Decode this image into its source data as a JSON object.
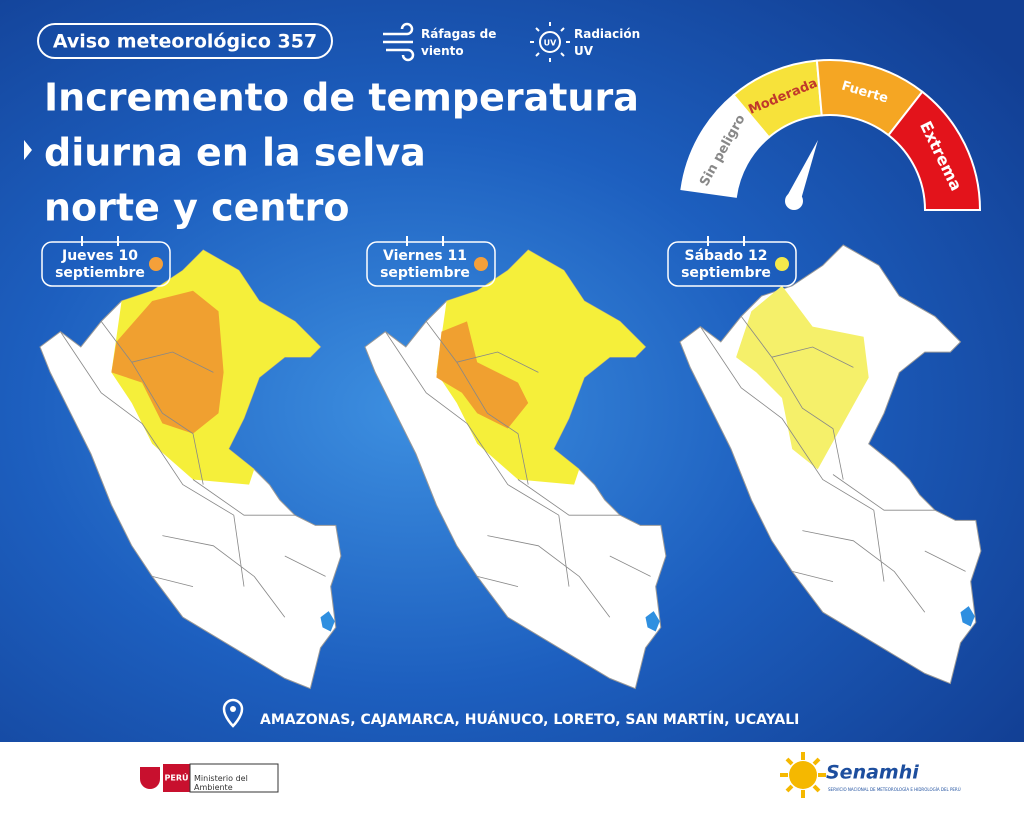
{
  "header": {
    "badge": "Aviso meteorológico 357",
    "legend": [
      "Ráfagas de viento",
      "Radiación UV"
    ],
    "title_lines": [
      "Incremento de temperatura",
      "diurna en la selva",
      "norte y centro"
    ]
  },
  "gauge": {
    "levels": [
      "Sin peligro",
      "Moderada",
      "Fuerte",
      "Extrema"
    ]
  },
  "days": [
    {
      "lines": [
        "Jueves 10",
        "septiembre"
      ]
    },
    {
      "lines": [
        "Viernes 11",
        "septiembre"
      ]
    },
    {
      "lines": [
        "Sábado 12",
        "septiembre"
      ]
    }
  ],
  "regions": "AMAZONAS, CAJAMARCA, HUÁNUCO, LORETO, SAN MARTÍN, UCAYALI",
  "footer": {
    "country": "PERÚ",
    "ministry": "Ministerio del Ambiente",
    "agency": "Senamhi",
    "agency_full": "SERVICIO NACIONAL DE METEOROLOGÍA E HIDROLOGÍA DEL PERÚ"
  }
}
